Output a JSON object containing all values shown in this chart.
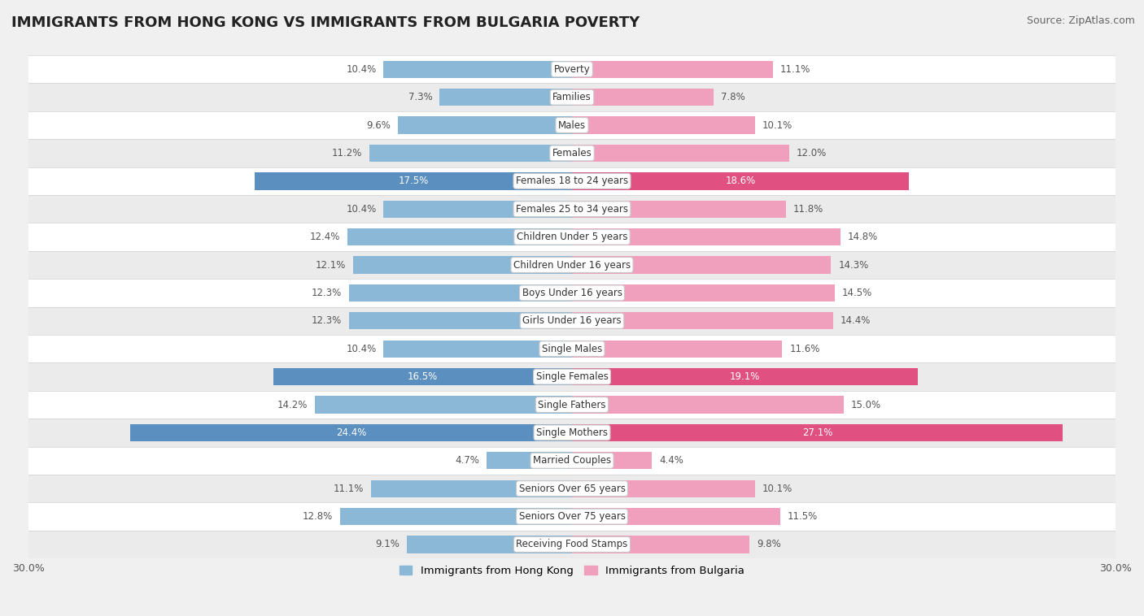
{
  "title": "IMMIGRANTS FROM HONG KONG VS IMMIGRANTS FROM BULGARIA POVERTY",
  "source": "Source: ZipAtlas.com",
  "categories": [
    "Poverty",
    "Families",
    "Males",
    "Females",
    "Females 18 to 24 years",
    "Females 25 to 34 years",
    "Children Under 5 years",
    "Children Under 16 years",
    "Boys Under 16 years",
    "Girls Under 16 years",
    "Single Males",
    "Single Females",
    "Single Fathers",
    "Single Mothers",
    "Married Couples",
    "Seniors Over 65 years",
    "Seniors Over 75 years",
    "Receiving Food Stamps"
  ],
  "hong_kong_values": [
    10.4,
    7.3,
    9.6,
    11.2,
    17.5,
    10.4,
    12.4,
    12.1,
    12.3,
    12.3,
    10.4,
    16.5,
    14.2,
    24.4,
    4.7,
    11.1,
    12.8,
    9.1
  ],
  "bulgaria_values": [
    11.1,
    7.8,
    10.1,
    12.0,
    18.6,
    11.8,
    14.8,
    14.3,
    14.5,
    14.4,
    11.6,
    19.1,
    15.0,
    27.1,
    4.4,
    10.1,
    11.5,
    9.8
  ],
  "hong_kong_color": "#8cb8d8",
  "bulgaria_color": "#f0a0bc",
  "hong_kong_highlight_color": "#5a8fc0",
  "bulgaria_highlight_color": "#e05080",
  "row_bg_light": "#f2f2f2",
  "row_bg_dark": "#e8e8e8",
  "axis_max": 30.0,
  "label_color_outside": "#555555",
  "label_color_inside": "#ffffff",
  "highlight_threshold": 15.5,
  "bar_height": 0.62,
  "title_fontsize": 13,
  "source_fontsize": 9,
  "label_fontsize": 8.5,
  "cat_fontsize": 8.5,
  "legend_label_hk": "Immigrants from Hong Kong",
  "legend_label_bg": "Immigrants from Bulgaria"
}
